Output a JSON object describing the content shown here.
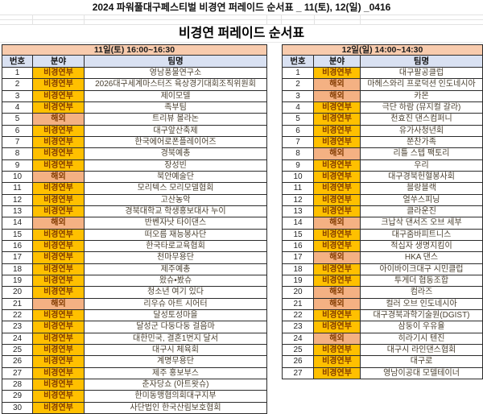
{
  "title": "2024 파워풀대구페스티벌 비경연 퍼레이드 순서표 _ 11(토), 12(일) _0416",
  "subtitle": "비경연 퍼레이드 순서표",
  "columns": [
    "번호",
    "분야",
    "팀명"
  ],
  "category_colors": {
    "비경연부": "#FFC000",
    "해외": "#F4B183"
  },
  "category_text_color": "#833C00",
  "tables": [
    {
      "header": "11일(토) 16:00~16:30",
      "rows": [
        [
          "1",
          "비경연부",
          "영남풍물연구소"
        ],
        [
          "2",
          "비경연부",
          "2026대구세계마스터즈 육상경기대회조직위원회"
        ],
        [
          "3",
          "비경연부",
          "제이모델"
        ],
        [
          "4",
          "비경연부",
          "족부팀"
        ],
        [
          "5",
          "해외",
          "트리뷰 볼라논"
        ],
        [
          "6",
          "비경연부",
          "대구앞산축제"
        ],
        [
          "7",
          "비경연부",
          "한국에어로폰플레이어즈"
        ],
        [
          "8",
          "비경연부",
          "경북예총"
        ],
        [
          "9",
          "비경연부",
          "장성빈"
        ],
        [
          "10",
          "해외",
          "북안예술단"
        ],
        [
          "11",
          "비경연부",
          "모리텍스 모리모델협회"
        ],
        [
          "12",
          "비경연부",
          "고산농악"
        ],
        [
          "13",
          "비경연부",
          "경북대학교 학생홍보대사 누이"
        ],
        [
          "14",
          "해외",
          "반벤자낫 타이댄스"
        ],
        [
          "15",
          "비경연부",
          "떠오름 재능봉사단"
        ],
        [
          "16",
          "비경연부",
          "한국타로교육협회"
        ],
        [
          "17",
          "비경연부",
          "천마무용단"
        ],
        [
          "18",
          "비경연부",
          "제주예총"
        ],
        [
          "19",
          "비경연부",
          "왔슈•봤슈"
        ],
        [
          "20",
          "비경연부",
          "청소년 여기 있다"
        ],
        [
          "21",
          "해외",
          "리우슈 아트 시어터"
        ],
        [
          "22",
          "비경연부",
          "달성토성마을"
        ],
        [
          "23",
          "비경연부",
          "달성군 다둥다둥 걸음마"
        ],
        [
          "24",
          "비경연부",
          "대한민국, 결혼1번지 달서"
        ],
        [
          "25",
          "비경연부",
          "대구시 체육회"
        ],
        [
          "26",
          "비경연부",
          "계명무용단"
        ],
        [
          "27",
          "비경연부",
          "제주 홍보부스"
        ],
        [
          "28",
          "비경연부",
          "춘자당쇼 (아트왓슈)"
        ],
        [
          "29",
          "비경연부",
          "한미동맹협의회대구지부"
        ],
        [
          "30",
          "비경연부",
          "사단법인 한국산림보호협회"
        ]
      ]
    },
    {
      "header": "12일(일) 14:00~14:30",
      "rows": [
        [
          "1",
          "비경연부",
          "대구팔공클럽"
        ],
        [
          "2",
          "해외",
          "마헤스와리 프로덕션 인도네시아"
        ],
        [
          "3",
          "해외",
          "카몬"
        ],
        [
          "4",
          "비경연부",
          "극단 하람 (뮤지컬 갈라)"
        ],
        [
          "5",
          "비경연부",
          "천효진 댄스컴퍼니"
        ],
        [
          "6",
          "비경연부",
          "유가사청년회"
        ],
        [
          "7",
          "비경연부",
          "쭌찬가족"
        ],
        [
          "8",
          "해외",
          "리틀 스텝 팩토리"
        ],
        [
          "9",
          "비경연부",
          "우리"
        ],
        [
          "10",
          "비경연부",
          "대구경북헌혈봉사회"
        ],
        [
          "11",
          "비경연부",
          "블랑블랙"
        ],
        [
          "12",
          "비경연부",
          "얼쑤스피닝"
        ],
        [
          "13",
          "비경연부",
          "클라운진"
        ],
        [
          "14",
          "해외",
          "크납삭 댄서즈 오브 세부"
        ],
        [
          "15",
          "비경연부",
          "대구줌바피트니스"
        ],
        [
          "16",
          "비경연부",
          "적십자 생명지킴이"
        ],
        [
          "17",
          "해외",
          "HKA 댄스"
        ],
        [
          "18",
          "비경연부",
          "아이바이크대구 시민클럽"
        ],
        [
          "19",
          "비경연부",
          "투게더 협동조합"
        ],
        [
          "20",
          "해외",
          "컴라즈"
        ],
        [
          "21",
          "해외",
          "컬러 오브 인도네시아"
        ],
        [
          "22",
          "비경연부",
          "대구경북과학기술원(DGIST)"
        ],
        [
          "23",
          "비경연부",
          "삼둥이 우유율"
        ],
        [
          "24",
          "해외",
          "히라기시 텐진"
        ],
        [
          "25",
          "비경연부",
          "대구시 라인댄스협회"
        ],
        [
          "26",
          "비경연부",
          "대구로"
        ],
        [
          "27",
          "비경연부",
          "영남이공대 모델테이너"
        ]
      ]
    }
  ]
}
